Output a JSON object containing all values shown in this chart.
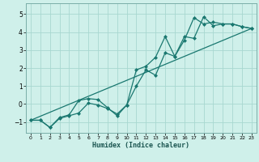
{
  "xlabel": "Humidex (Indice chaleur)",
  "bg_color": "#cff0ea",
  "grid_color": "#a8d8d0",
  "line_color": "#1a7870",
  "marker_color": "#1a7870",
  "xlim": [
    -0.5,
    23.5
  ],
  "ylim": [
    -1.6,
    5.6
  ],
  "xticks": [
    0,
    1,
    2,
    3,
    4,
    5,
    6,
    7,
    8,
    9,
    10,
    11,
    12,
    13,
    14,
    15,
    16,
    17,
    18,
    19,
    20,
    21,
    22,
    23
  ],
  "yticks": [
    -1,
    0,
    1,
    2,
    3,
    4,
    5
  ],
  "line1_x": [
    0,
    1,
    2,
    3,
    4,
    5,
    6,
    7,
    8,
    9,
    10,
    11,
    12,
    13,
    14,
    15,
    16,
    17,
    18,
    19,
    20,
    21,
    22,
    23
  ],
  "line1_y": [
    -0.9,
    -0.9,
    -1.3,
    -0.8,
    -0.65,
    -0.5,
    0.05,
    -0.05,
    -0.25,
    -0.55,
    -0.05,
    1.0,
    1.9,
    1.6,
    2.85,
    2.65,
    3.55,
    4.8,
    4.45,
    4.55,
    4.45,
    4.45,
    4.3,
    4.2
  ],
  "line2_x": [
    0,
    1,
    2,
    3,
    4,
    5,
    6,
    7,
    8,
    9,
    10,
    11,
    12,
    13,
    14,
    15,
    16,
    17,
    18,
    19,
    20,
    21,
    22,
    23
  ],
  "line2_y": [
    -0.9,
    -0.9,
    -1.3,
    -0.75,
    -0.6,
    0.2,
    0.3,
    0.25,
    -0.2,
    -0.65,
    -0.05,
    1.9,
    2.1,
    2.6,
    3.75,
    2.65,
    3.75,
    3.65,
    4.85,
    4.35,
    4.45,
    4.45,
    4.3,
    4.2
  ],
  "line3_x": [
    0,
    23
  ],
  "line3_y": [
    -0.9,
    4.2
  ]
}
